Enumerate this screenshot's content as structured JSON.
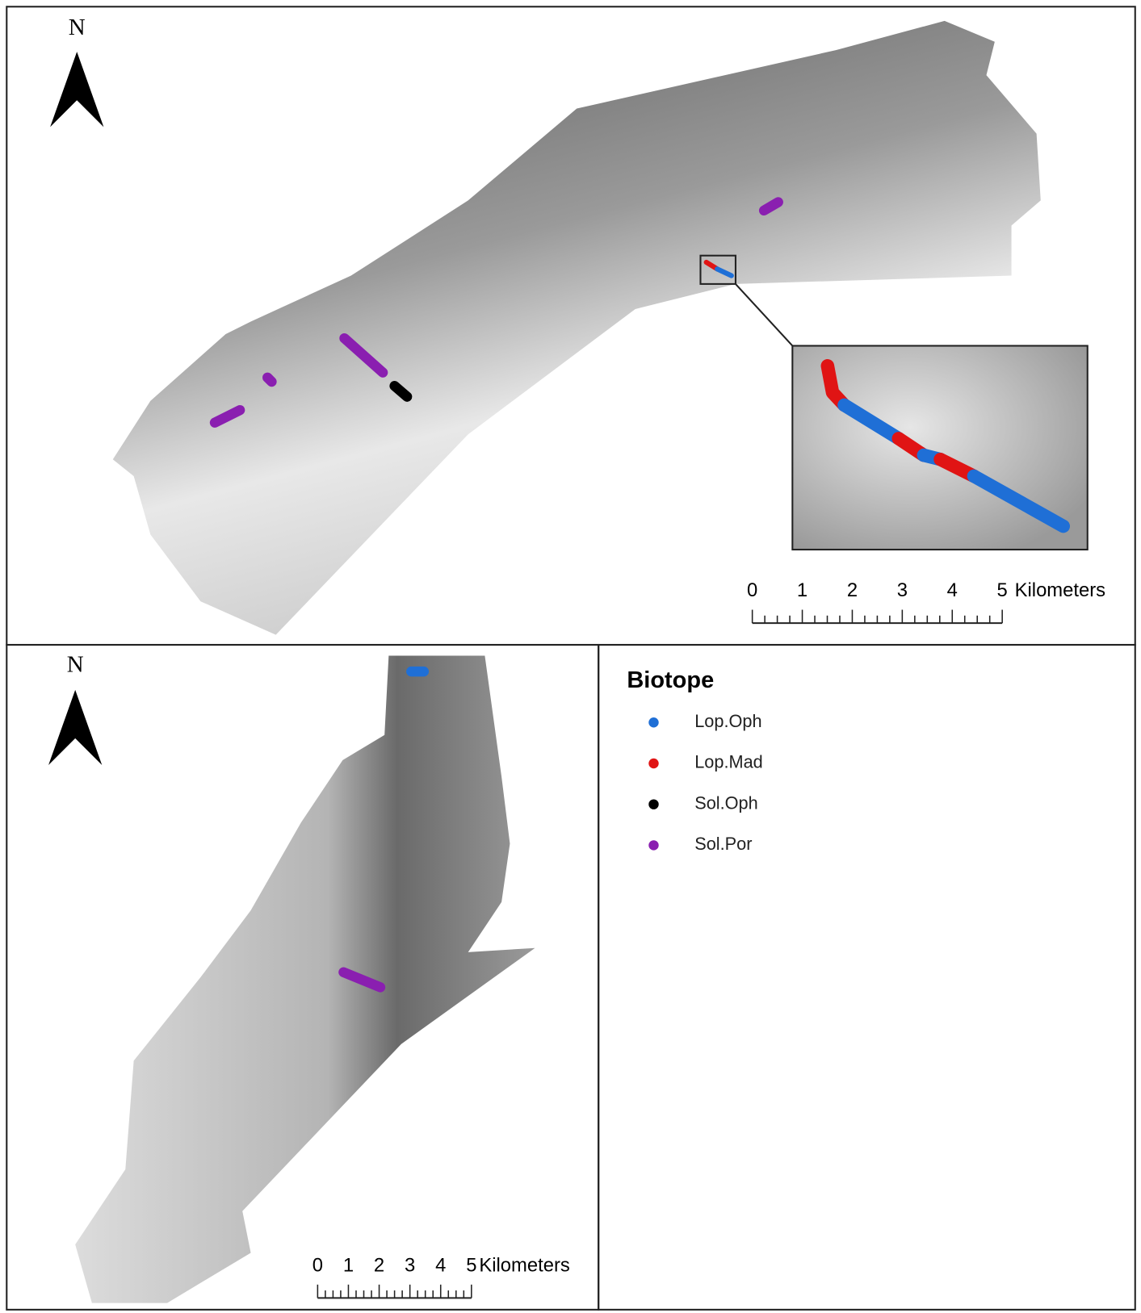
{
  "top_map": {
    "north": "N",
    "scale": {
      "labels": [
        "0",
        "1",
        "2",
        "3",
        "4",
        "5"
      ],
      "unit": "Kilometers"
    }
  },
  "bottom_map": {
    "north": "N",
    "scale": {
      "labels": [
        "0",
        "1",
        "2",
        "3",
        "4",
        "5"
      ],
      "unit": "Kilometers"
    }
  },
  "legend": {
    "title": "Biotope",
    "items": [
      {
        "label": "Lop.Oph",
        "color": "#1f6fd6"
      },
      {
        "label": "Lop.Mad",
        "color": "#e01414"
      },
      {
        "label": "Sol.Oph",
        "color": "#000000"
      },
      {
        "label": "Sol.Por",
        "color": "#8a1fb0"
      }
    ]
  }
}
